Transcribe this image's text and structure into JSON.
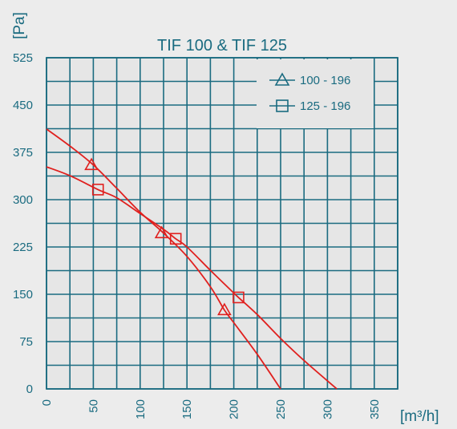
{
  "chart_data": {
    "type": "line",
    "title": "TIF 100 & TIF 125",
    "ylabel": "[Pa]",
    "xlabel": "[m³/h]",
    "xlim": [
      0,
      375
    ],
    "ylim": [
      0,
      525
    ],
    "xticks": [
      0,
      50,
      100,
      150,
      200,
      250,
      300,
      350
    ],
    "yticks": [
      0,
      75,
      150,
      225,
      300,
      375,
      450,
      525
    ],
    "grid": true,
    "legend_position": "top-right",
    "colors": {
      "axis": "#1a6b80",
      "series": "#e0201e",
      "background": "#ececec",
      "plot_background": "#e6e6e6"
    },
    "series": [
      {
        "name": "100 - 196",
        "marker": "triangle",
        "points": [
          [
            0,
            412
          ],
          [
            25,
            385
          ],
          [
            50,
            355
          ],
          [
            75,
            318
          ],
          [
            100,
            280
          ],
          [
            125,
            247
          ],
          [
            150,
            210
          ],
          [
            175,
            162
          ],
          [
            190,
            125
          ],
          [
            200,
            105
          ],
          [
            225,
            55
          ],
          [
            250,
            0
          ]
        ],
        "marker_points": [
          [
            48,
            355
          ],
          [
            123,
            247
          ],
          [
            190,
            125
          ]
        ]
      },
      {
        "name": "125 - 196",
        "marker": "square",
        "points": [
          [
            0,
            352
          ],
          [
            25,
            338
          ],
          [
            55,
            316
          ],
          [
            75,
            303
          ],
          [
            100,
            278
          ],
          [
            125,
            253
          ],
          [
            138,
            238
          ],
          [
            150,
            225
          ],
          [
            175,
            188
          ],
          [
            200,
            152
          ],
          [
            205,
            145
          ],
          [
            225,
            118
          ],
          [
            250,
            80
          ],
          [
            275,
            45
          ],
          [
            310,
            0
          ]
        ],
        "marker_points": [
          [
            55,
            316
          ],
          [
            138,
            238
          ],
          [
            205,
            145
          ]
        ]
      }
    ]
  }
}
